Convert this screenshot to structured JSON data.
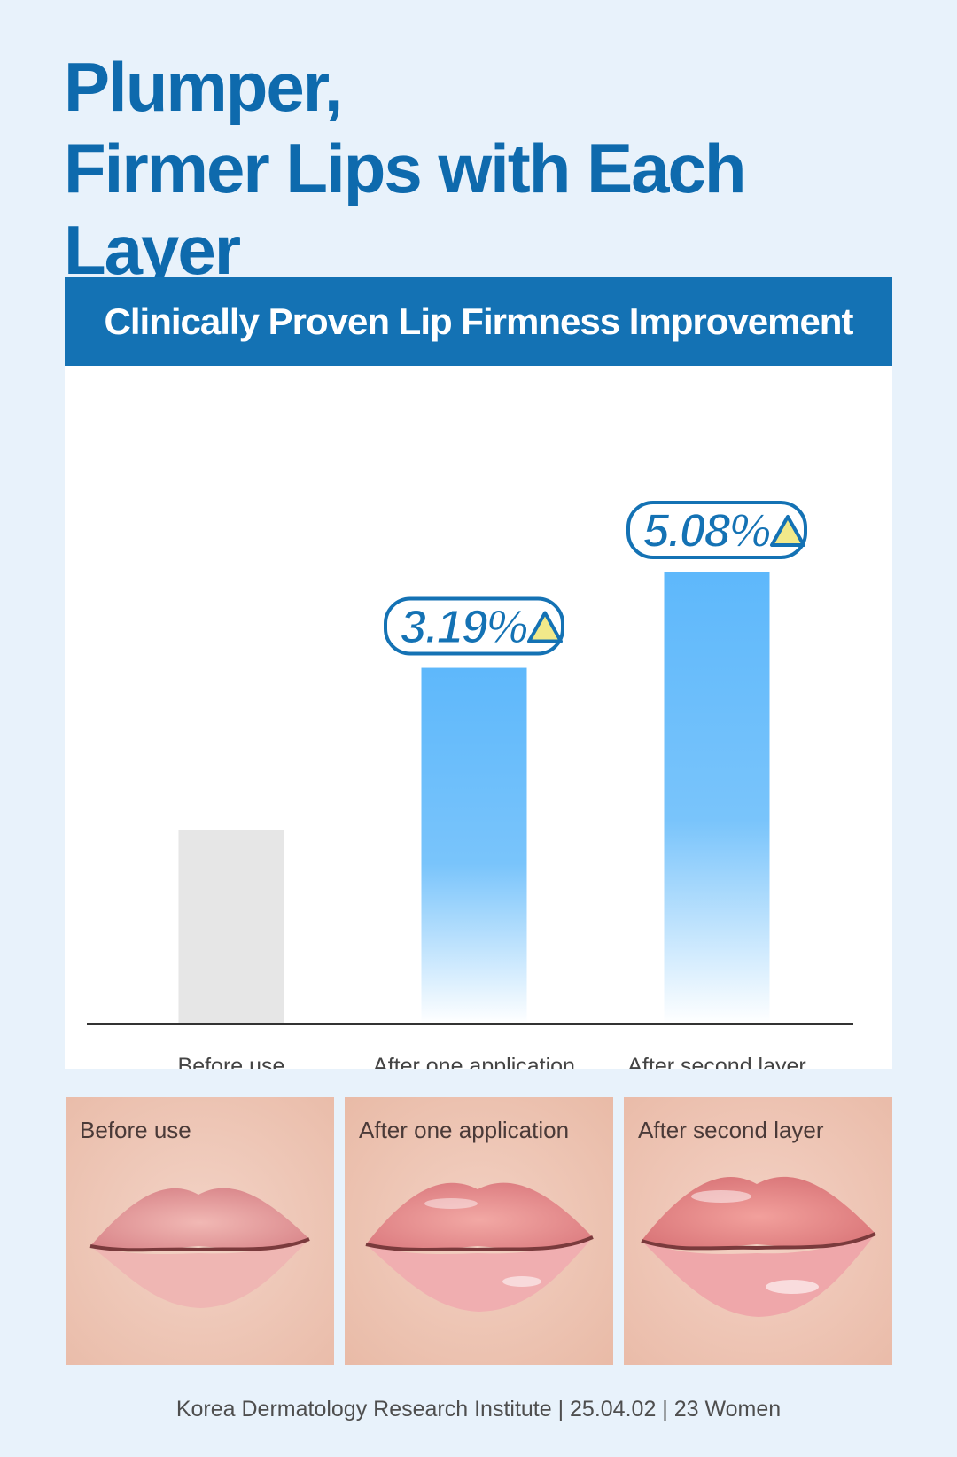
{
  "headline": {
    "line1": "Plumper,",
    "line2": "Firmer Lips with Each Layer"
  },
  "chart_data": {
    "type": "bar",
    "title": "Clinically Proven Lip Firmness Improvement",
    "categories": [
      "Before use",
      "After one application",
      "After second layer"
    ],
    "values": [
      100,
      103.19,
      105.08
    ],
    "data_labels": [
      "",
      "3.19%",
      "5.08%"
    ],
    "bar_styles": [
      "neutral",
      "highlight",
      "highlight"
    ],
    "colors": {
      "neutral": "#e6e6e6",
      "highlight_top": "#5eb8fb",
      "highlight_bottom": "#ffffff",
      "triangle": "#f2e98a",
      "label_outline": "#1472b4"
    },
    "grid": false,
    "legend": "none"
  },
  "photos": [
    {
      "label": "Before use"
    },
    {
      "label": "After one application"
    },
    {
      "label": "After second layer"
    }
  ],
  "footer": {
    "source": "Korea Dermatology Research Institute | 25.04.02 | 23 Women"
  }
}
